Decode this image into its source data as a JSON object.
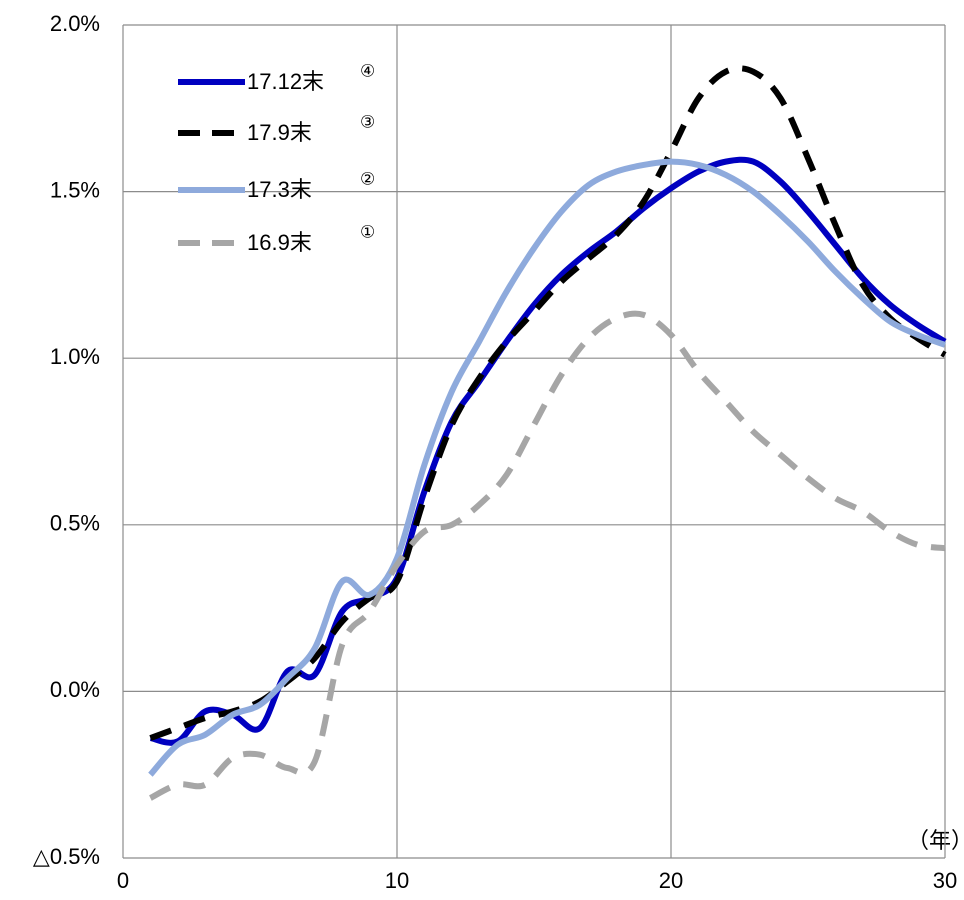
{
  "chart_data": {
    "type": "line",
    "x_label": "（年）",
    "x": [
      1,
      2,
      3,
      4,
      5,
      6,
      7,
      8,
      9,
      10,
      11,
      12,
      13,
      14,
      15,
      16,
      17,
      18,
      19,
      20,
      21,
      22,
      23,
      24,
      25,
      26,
      27,
      28,
      29,
      30
    ],
    "series": [
      {
        "name": "17.12末",
        "marker_label": "④",
        "color": "#0000c0",
        "dashed": false,
        "values": [
          -0.14,
          -0.15,
          -0.06,
          -0.07,
          -0.11,
          0.06,
          0.05,
          0.24,
          0.28,
          0.34,
          0.6,
          0.81,
          0.93,
          1.05,
          1.16,
          1.25,
          1.32,
          1.38,
          1.45,
          1.51,
          1.56,
          1.59,
          1.59,
          1.53,
          1.44,
          1.34,
          1.24,
          1.16,
          1.1,
          1.05
        ]
      },
      {
        "name": "17.9末",
        "marker_label": "③",
        "color": "#000000",
        "dashed": true,
        "values": [
          -0.14,
          -0.11,
          -0.08,
          -0.06,
          -0.03,
          0.03,
          0.1,
          0.21,
          0.28,
          0.33,
          0.58,
          0.8,
          0.94,
          1.05,
          1.14,
          1.23,
          1.3,
          1.37,
          1.47,
          1.62,
          1.78,
          1.86,
          1.86,
          1.78,
          1.6,
          1.4,
          1.22,
          1.12,
          1.06,
          1.01
        ]
      },
      {
        "name": "17.3末",
        "marker_label": "②",
        "color": "#8eaadc",
        "dashed": false,
        "values": [
          -0.25,
          -0.16,
          -0.13,
          -0.07,
          -0.04,
          0.04,
          0.13,
          0.33,
          0.29,
          0.4,
          0.68,
          0.9,
          1.05,
          1.2,
          1.33,
          1.44,
          1.52,
          1.56,
          1.58,
          1.59,
          1.58,
          1.55,
          1.5,
          1.43,
          1.35,
          1.26,
          1.18,
          1.11,
          1.07,
          1.04
        ]
      },
      {
        "name": "16.9末",
        "marker_label": "①",
        "color": "#a6a6a6",
        "dashed": true,
        "values": [
          -0.32,
          -0.28,
          -0.28,
          -0.2,
          -0.19,
          -0.23,
          -0.21,
          0.14,
          0.24,
          0.38,
          0.48,
          0.5,
          0.56,
          0.65,
          0.8,
          0.95,
          1.06,
          1.12,
          1.13,
          1.07,
          0.96,
          0.87,
          0.78,
          0.71,
          0.64,
          0.58,
          0.54,
          0.48,
          0.44,
          0.43
        ]
      }
    ],
    "xlim": [
      0,
      30
    ],
    "xticks": [
      0,
      10,
      20,
      30
    ],
    "ylim": [
      -0.5,
      2
    ],
    "yticks": [
      {
        "value": -0.5,
        "label": "△0.5%"
      },
      {
        "value": 0,
        "label": "0.0%"
      },
      {
        "value": 0.5,
        "label": "0.5%"
      },
      {
        "value": 1,
        "label": "1.0%"
      },
      {
        "value": 1.5,
        "label": "1.5%"
      },
      {
        "value": 2,
        "label": "2.0%"
      }
    ],
    "grid": true
  }
}
